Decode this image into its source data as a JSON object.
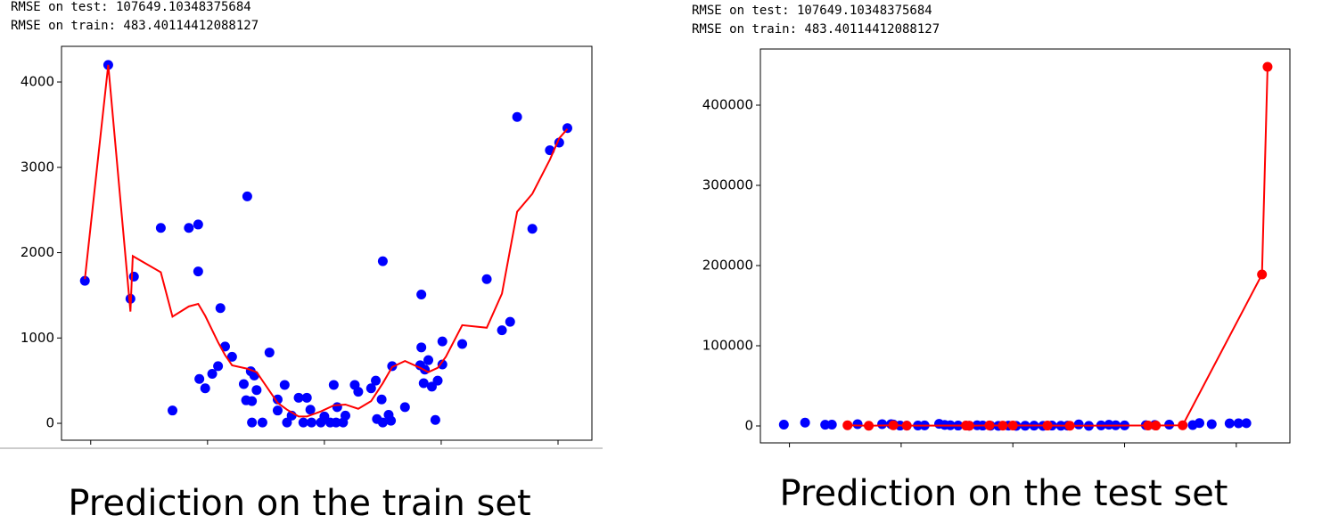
{
  "chart_data": [
    {
      "type": "scatter",
      "annotations": [
        "RMSE on test: 107649.10348375684",
        "RMSE on train: 483.40114412088127"
      ],
      "caption": "Prediction on the train set",
      "xlim": [
        -0.25,
        4.29
      ],
      "xticks": [
        0,
        1,
        2,
        3,
        4
      ],
      "ylim": [
        -198,
        4418
      ],
      "yticks": [
        0,
        1000,
        2000,
        3000,
        4000
      ],
      "series": [
        {
          "color": "#0000ff",
          "style": "scatter",
          "x": [
            -0.05,
            0.15,
            0.34,
            0.37,
            0.6,
            0.7,
            0.84,
            0.92,
            0.92,
            0.93,
            0.98,
            1.04,
            1.09,
            1.11,
            1.15,
            1.21,
            1.31,
            1.34,
            1.33,
            1.37,
            1.38,
            1.4,
            1.42,
            1.38,
            1.47,
            1.53,
            1.6,
            1.6,
            1.66,
            1.68,
            1.72,
            1.78,
            1.82,
            1.85,
            1.88,
            1.89,
            1.97,
            2.0,
            2.05,
            2.08,
            2.1,
            2.11,
            2.16,
            2.18,
            2.26,
            2.29,
            2.4,
            2.44,
            2.45,
            2.49,
            2.5,
            2.5,
            2.55,
            2.58,
            2.57,
            2.69,
            2.82,
            2.83,
            2.83,
            2.85,
            2.86,
            2.89,
            2.92,
            2.95,
            2.97,
            3.01,
            3.01,
            3.18,
            3.39,
            3.52,
            3.59,
            3.65,
            3.78,
            3.93,
            4.01,
            4.08
          ],
          "values": [
            1670,
            4200,
            1460,
            1720,
            2290,
            150,
            2290,
            2330,
            1780,
            520,
            410,
            580,
            670,
            1350,
            900,
            780,
            460,
            2660,
            270,
            610,
            260,
            560,
            390,
            10,
            10,
            830,
            280,
            150,
            450,
            10,
            90,
            300,
            10,
            300,
            160,
            10,
            10,
            80,
            10,
            450,
            10,
            190,
            10,
            90,
            450,
            370,
            410,
            500,
            50,
            280,
            1900,
            10,
            100,
            670,
            30,
            190,
            680,
            1510,
            890,
            470,
            630,
            740,
            430,
            40,
            500,
            690,
            960,
            930,
            1690,
            1090,
            1190,
            3590,
            2280,
            3200,
            3290,
            3460
          ]
        },
        {
          "color": "#ff0000",
          "style": "line",
          "x": [
            -0.05,
            0.15,
            0.34,
            0.36,
            0.6,
            0.7,
            0.84,
            0.92,
            0.98,
            1.09,
            1.15,
            1.21,
            1.34,
            1.42,
            1.51,
            1.6,
            1.68,
            1.78,
            1.85,
            1.97,
            2.08,
            2.18,
            2.29,
            2.4,
            2.5,
            2.58,
            2.69,
            2.82,
            2.89,
            2.97,
            3.04,
            3.18,
            3.39,
            3.52,
            3.65,
            3.78,
            3.93,
            4.01,
            4.08
          ],
          "values": [
            1690,
            4200,
            1310,
            1960,
            1770,
            1250,
            1370,
            1400,
            1260,
            950,
            800,
            680,
            640,
            600,
            420,
            240,
            160,
            80,
            80,
            140,
            210,
            220,
            170,
            260,
            470,
            660,
            730,
            650,
            600,
            650,
            780,
            1150,
            1120,
            1520,
            2480,
            2690,
            3090,
            3340,
            3450
          ]
        }
      ]
    },
    {
      "type": "scatter",
      "annotations": [
        "RMSE on test: 107649.10348375684",
        "RMSE on train: 483.40114412088127"
      ],
      "caption": "Prediction on the test set",
      "xlim": [
        -0.26,
        4.48
      ],
      "xticks": [
        0,
        1,
        2,
        3,
        4
      ],
      "ylim": [
        -21100,
        470000
      ],
      "yticks": [
        0,
        100000,
        200000,
        300000,
        400000
      ],
      "series": [
        {
          "color": "#0000ff",
          "style": "scatter",
          "x": [
            -0.05,
            0.14,
            0.32,
            0.38,
            0.61,
            0.83,
            0.91,
            0.93,
            0.99,
            1.05,
            1.15,
            1.21,
            1.34,
            1.39,
            1.44,
            1.51,
            1.61,
            1.68,
            1.73,
            1.8,
            1.87,
            1.96,
            2.03,
            2.11,
            2.19,
            2.27,
            2.35,
            2.43,
            2.49,
            2.59,
            2.68,
            2.79,
            2.86,
            2.92,
            3.0,
            3.19,
            3.27,
            3.4,
            3.61,
            3.67,
            3.78,
            3.94,
            4.02,
            4.09
          ],
          "values": [
            1700,
            4200,
            1500,
            1700,
            2300,
            2300,
            2300,
            1800,
            500,
            400,
            600,
            700,
            2700,
            1300,
            900,
            500,
            300,
            800,
            500,
            300,
            100,
            400,
            100,
            300,
            400,
            200,
            500,
            300,
            400,
            1900,
            100,
            700,
            1500,
            900,
            700,
            1000,
            1200,
            1700,
            1100,
            3600,
            2300,
            3200,
            3300,
            3500
          ]
        },
        {
          "color": "#ff0000",
          "style": "line-marker",
          "x": [
            0.52,
            0.71,
            0.93,
            1.05,
            1.58,
            1.61,
            1.79,
            1.91,
            2.0,
            2.31,
            2.51,
            3.21,
            3.28,
            3.52,
            4.23,
            4.28
          ],
          "values": [
            900,
            300,
            800,
            400,
            500,
            300,
            700,
            400,
            600,
            500,
            300,
            600,
            500,
            900,
            188900,
            447800
          ]
        }
      ]
    }
  ]
}
